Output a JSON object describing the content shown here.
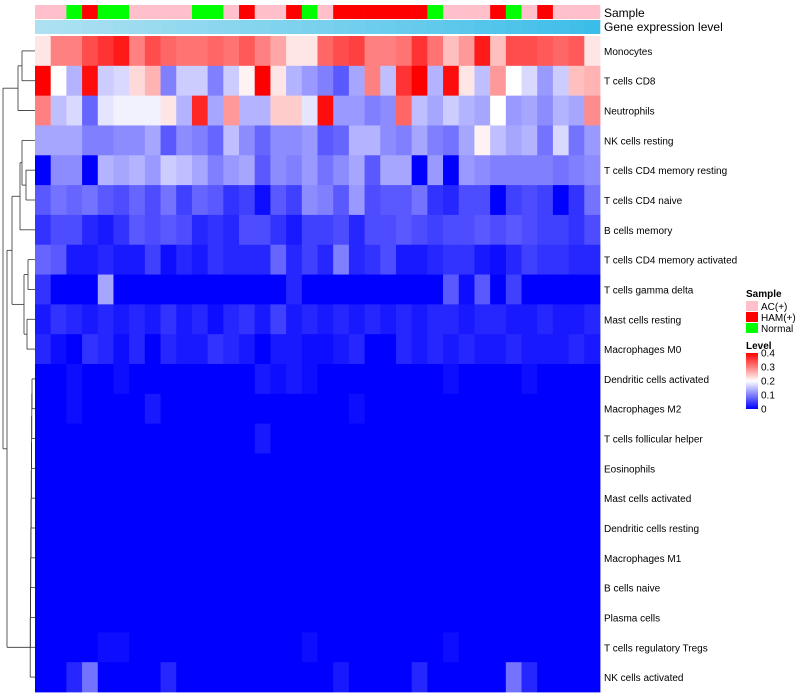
{
  "chart_data": {
    "type": "heatmap",
    "title": "",
    "annotation_tracks": [
      "Sample",
      "Gene expression level"
    ],
    "sample_groups": [
      "AC(+)",
      "AC(+)",
      "Normal",
      "HAM(+)",
      "Normal",
      "Normal",
      "AC(+)",
      "AC(+)",
      "AC(+)",
      "AC(+)",
      "Normal",
      "Normal",
      "AC(+)",
      "HAM(+)",
      "AC(+)",
      "AC(+)",
      "HAM(+)",
      "Normal",
      "AC(+)",
      "HAM(+)",
      "HAM(+)",
      "HAM(+)",
      "HAM(+)",
      "HAM(+)",
      "HAM(+)",
      "Normal",
      "AC(+)",
      "AC(+)",
      "AC(+)",
      "HAM(+)",
      "Normal",
      "AC(+)",
      "HAM(+)",
      "AC(+)",
      "AC(+)",
      "AC(+)"
    ],
    "expression_track": [
      0.06,
      0.08,
      0.1,
      0.12,
      0.15,
      0.18,
      0.2,
      0.22,
      0.25,
      0.28,
      0.3,
      0.33,
      0.35,
      0.38,
      0.4,
      0.43,
      0.45,
      0.48,
      0.5,
      0.53,
      0.56,
      0.58,
      0.6,
      0.63,
      0.66,
      0.69,
      0.72,
      0.75,
      0.78,
      0.81,
      0.84,
      0.87,
      0.9,
      0.93,
      0.96,
      1.0
    ],
    "rows": [
      "Monocytes",
      "T cells CD8",
      "Neutrophils",
      "NK cells resting",
      "T cells CD4 memory resting",
      "T cells CD4 naive",
      "B cells memory",
      "T cells CD4 memory activated",
      "T cells gamma delta",
      "Mast cells resting",
      "Macrophages M0",
      "Dendritic cells activated",
      "Macrophages M2",
      "T cells follicular helper",
      "Eosinophils",
      "Mast cells activated",
      "Dendritic cells resting",
      "Macrophages M1",
      "B cells naive",
      "Plasma cells",
      "T cells regulatory  Tregs",
      "NK cells activated"
    ],
    "values": [
      [
        0.22,
        0.3,
        0.3,
        0.34,
        0.36,
        0.38,
        0.3,
        0.34,
        0.32,
        0.31,
        0.31,
        0.32,
        0.31,
        0.33,
        0.3,
        0.27,
        0.22,
        0.22,
        0.32,
        0.34,
        0.35,
        0.3,
        0.3,
        0.31,
        0.36,
        0.31,
        0.25,
        0.28,
        0.38,
        0.25,
        0.34,
        0.34,
        0.33,
        0.32,
        0.33,
        0.22
      ],
      [
        0.4,
        0.2,
        0.14,
        0.39,
        0.16,
        0.17,
        0.23,
        0.26,
        0.1,
        0.16,
        0.16,
        0.1,
        0.16,
        0.21,
        0.4,
        0.22,
        0.14,
        0.12,
        0.1,
        0.07,
        0.13,
        0.3,
        0.15,
        0.36,
        0.4,
        0.14,
        0.39,
        0.22,
        0.15,
        0.28,
        0.2,
        0.17,
        0.12,
        0.16,
        0.25,
        0.26
      ],
      [
        0.3,
        0.15,
        0.17,
        0.08,
        0.18,
        0.19,
        0.19,
        0.19,
        0.22,
        0.14,
        0.37,
        0.13,
        0.28,
        0.14,
        0.14,
        0.24,
        0.24,
        0.18,
        0.39,
        0.12,
        0.12,
        0.1,
        0.11,
        0.32,
        0.15,
        0.13,
        0.16,
        0.14,
        0.13,
        0.2,
        0.12,
        0.13,
        0.11,
        0.14,
        0.13,
        0.29
      ],
      [
        0.13,
        0.13,
        0.13,
        0.1,
        0.1,
        0.11,
        0.11,
        0.13,
        0.07,
        0.11,
        0.1,
        0.08,
        0.15,
        0.11,
        0.08,
        0.11,
        0.11,
        0.12,
        0.07,
        0.08,
        0.14,
        0.14,
        0.11,
        0.1,
        0.13,
        0.1,
        0.09,
        0.13,
        0.21,
        0.15,
        0.13,
        0.14,
        0.09,
        0.17,
        0.09,
        0.12
      ],
      [
        0.0,
        0.11,
        0.11,
        0.0,
        0.14,
        0.13,
        0.14,
        0.12,
        0.16,
        0.15,
        0.13,
        0.1,
        0.12,
        0.13,
        0.07,
        0.11,
        0.1,
        0.12,
        0.09,
        0.11,
        0.13,
        0.07,
        0.13,
        0.13,
        0.0,
        0.12,
        0.0,
        0.12,
        0.11,
        0.1,
        0.1,
        0.1,
        0.1,
        0.09,
        0.1,
        0.11
      ],
      [
        0.07,
        0.09,
        0.08,
        0.09,
        0.07,
        0.06,
        0.08,
        0.06,
        0.09,
        0.05,
        0.08,
        0.07,
        0.04,
        0.05,
        0.01,
        0.07,
        0.05,
        0.11,
        0.1,
        0.07,
        0.12,
        0.06,
        0.07,
        0.07,
        0.09,
        0.04,
        0.03,
        0.06,
        0.06,
        0.0,
        0.05,
        0.06,
        0.05,
        0.0,
        0.04,
        0.09
      ],
      [
        0.04,
        0.06,
        0.06,
        0.03,
        0.02,
        0.04,
        0.07,
        0.06,
        0.07,
        0.06,
        0.03,
        0.04,
        0.03,
        0.06,
        0.06,
        0.04,
        0.02,
        0.05,
        0.05,
        0.06,
        0.03,
        0.06,
        0.06,
        0.07,
        0.06,
        0.05,
        0.06,
        0.06,
        0.07,
        0.06,
        0.07,
        0.06,
        0.05,
        0.05,
        0.04,
        0.06
      ],
      [
        0.08,
        0.07,
        0.02,
        0.02,
        0.03,
        0.02,
        0.02,
        0.05,
        0.01,
        0.03,
        0.02,
        0.04,
        0.03,
        0.03,
        0.03,
        0.08,
        0.03,
        0.05,
        0.03,
        0.1,
        0.03,
        0.04,
        0.06,
        0.02,
        0.02,
        0.03,
        0.04,
        0.04,
        0.02,
        0.01,
        0.03,
        0.05,
        0.04,
        0.04,
        0.03,
        0.03
      ],
      [
        0.04,
        0.0,
        0.0,
        0.0,
        0.13,
        0.0,
        0.0,
        0.0,
        0.0,
        0.0,
        0.0,
        0.0,
        0.0,
        0.0,
        0.0,
        0.0,
        0.03,
        0.0,
        0.0,
        0.0,
        0.0,
        0.0,
        0.0,
        0.0,
        0.0,
        0.0,
        0.07,
        0.01,
        0.07,
        0.0,
        0.05,
        0.0,
        0.0,
        0.0,
        0.0,
        0.0
      ],
      [
        0.02,
        0.04,
        0.03,
        0.02,
        0.03,
        0.02,
        0.03,
        0.02,
        0.04,
        0.02,
        0.03,
        0.01,
        0.03,
        0.04,
        0.02,
        0.05,
        0.02,
        0.03,
        0.02,
        0.03,
        0.02,
        0.03,
        0.02,
        0.03,
        0.02,
        0.03,
        0.03,
        0.02,
        0.03,
        0.03,
        0.02,
        0.02,
        0.03,
        0.02,
        0.02,
        0.03
      ],
      [
        0.03,
        0.01,
        0.0,
        0.04,
        0.03,
        0.01,
        0.03,
        0.0,
        0.03,
        0.02,
        0.02,
        0.04,
        0.03,
        0.02,
        0.0,
        0.02,
        0.02,
        0.01,
        0.01,
        0.02,
        0.03,
        0.0,
        0.0,
        0.03,
        0.02,
        0.03,
        0.02,
        0.03,
        0.02,
        0.02,
        0.03,
        0.02,
        0.02,
        0.02,
        0.03,
        0.02
      ],
      [
        0.0,
        0.0,
        0.01,
        0.0,
        0.0,
        0.01,
        0.0,
        0.0,
        0.0,
        0.0,
        0.0,
        0.0,
        0.0,
        0.0,
        0.02,
        0.01,
        0.02,
        0.01,
        0.0,
        0.0,
        0.0,
        0.0,
        0.0,
        0.0,
        0.0,
        0.0,
        0.01,
        0.0,
        0.0,
        0.0,
        0.0,
        0.01,
        0.0,
        0.0,
        0.0,
        0.0
      ],
      [
        0.0,
        0.0,
        0.01,
        0.0,
        0.0,
        0.0,
        0.0,
        0.02,
        0.0,
        0.0,
        0.0,
        0.0,
        0.0,
        0.0,
        0.0,
        0.0,
        0.0,
        0.0,
        0.0,
        0.0,
        0.01,
        0.0,
        0.0,
        0.0,
        0.0,
        0.0,
        0.0,
        0.0,
        0.0,
        0.0,
        0.0,
        0.0,
        0.0,
        0.0,
        0.0,
        0.0
      ],
      [
        0.0,
        0.0,
        0.0,
        0.0,
        0.0,
        0.0,
        0.0,
        0.0,
        0.0,
        0.0,
        0.0,
        0.0,
        0.0,
        0.0,
        0.02,
        0.0,
        0.0,
        0.0,
        0.0,
        0.0,
        0.0,
        0.0,
        0.0,
        0.0,
        0.0,
        0.0,
        0.0,
        0.0,
        0.0,
        0.0,
        0.0,
        0.0,
        0.0,
        0.0,
        0.0,
        0.0
      ],
      [
        0.0,
        0.0,
        0.0,
        0.0,
        0.0,
        0.0,
        0.0,
        0.0,
        0.0,
        0.0,
        0.0,
        0.0,
        0.0,
        0.0,
        0.0,
        0.0,
        0.0,
        0.0,
        0.0,
        0.0,
        0.0,
        0.0,
        0.0,
        0.0,
        0.0,
        0.0,
        0.0,
        0.0,
        0.0,
        0.0,
        0.0,
        0.0,
        0.0,
        0.0,
        0.0,
        0.0
      ],
      [
        0.0,
        0.0,
        0.0,
        0.0,
        0.0,
        0.0,
        0.0,
        0.0,
        0.0,
        0.0,
        0.0,
        0.0,
        0.0,
        0.0,
        0.0,
        0.0,
        0.0,
        0.0,
        0.0,
        0.0,
        0.0,
        0.0,
        0.0,
        0.0,
        0.0,
        0.0,
        0.0,
        0.0,
        0.0,
        0.0,
        0.0,
        0.0,
        0.0,
        0.0,
        0.0,
        0.0
      ],
      [
        0.0,
        0.0,
        0.0,
        0.0,
        0.0,
        0.0,
        0.0,
        0.0,
        0.0,
        0.0,
        0.0,
        0.0,
        0.0,
        0.0,
        0.0,
        0.0,
        0.0,
        0.0,
        0.0,
        0.0,
        0.0,
        0.0,
        0.0,
        0.0,
        0.0,
        0.0,
        0.0,
        0.0,
        0.0,
        0.0,
        0.0,
        0.0,
        0.0,
        0.0,
        0.0,
        0.0
      ],
      [
        0.0,
        0.0,
        0.0,
        0.0,
        0.0,
        0.0,
        0.0,
        0.0,
        0.0,
        0.0,
        0.0,
        0.0,
        0.0,
        0.0,
        0.0,
        0.0,
        0.0,
        0.0,
        0.0,
        0.0,
        0.0,
        0.0,
        0.0,
        0.0,
        0.0,
        0.0,
        0.0,
        0.0,
        0.0,
        0.0,
        0.0,
        0.0,
        0.0,
        0.0,
        0.0,
        0.0
      ],
      [
        0.0,
        0.0,
        0.0,
        0.0,
        0.0,
        0.0,
        0.0,
        0.0,
        0.0,
        0.0,
        0.0,
        0.0,
        0.0,
        0.0,
        0.0,
        0.0,
        0.0,
        0.0,
        0.0,
        0.0,
        0.0,
        0.0,
        0.0,
        0.0,
        0.0,
        0.0,
        0.0,
        0.0,
        0.0,
        0.0,
        0.0,
        0.0,
        0.0,
        0.0,
        0.0,
        0.0
      ],
      [
        0.0,
        0.0,
        0.0,
        0.0,
        0.0,
        0.0,
        0.0,
        0.0,
        0.0,
        0.0,
        0.0,
        0.0,
        0.0,
        0.0,
        0.0,
        0.0,
        0.0,
        0.0,
        0.0,
        0.0,
        0.0,
        0.0,
        0.0,
        0.0,
        0.0,
        0.0,
        0.0,
        0.0,
        0.0,
        0.0,
        0.0,
        0.0,
        0.0,
        0.0,
        0.0,
        0.0
      ],
      [
        0.0,
        0.0,
        0.0,
        0.0,
        0.01,
        0.01,
        0.0,
        0.0,
        0.0,
        0.0,
        0.0,
        0.0,
        0.0,
        0.0,
        0.0,
        0.0,
        0.0,
        0.01,
        0.0,
        0.0,
        0.0,
        0.0,
        0.0,
        0.0,
        0.0,
        0.0,
        0.01,
        0.0,
        0.0,
        0.0,
        0.0,
        0.0,
        0.0,
        0.0,
        0.0,
        0.0
      ],
      [
        0.0,
        0.0,
        0.03,
        0.09,
        0.0,
        0.0,
        0.0,
        0.0,
        0.03,
        0.0,
        0.0,
        0.0,
        0.0,
        0.0,
        0.0,
        0.0,
        0.0,
        0.0,
        0.0,
        0.02,
        0.0,
        0.0,
        0.0,
        0.0,
        0.03,
        0.0,
        0.0,
        0.0,
        0.0,
        0.0,
        0.09,
        0.03,
        0.0,
        0.0,
        0.0,
        0.0
      ]
    ],
    "color_scale": {
      "min": 0,
      "max": 0.4,
      "low": "#0000ff",
      "mid": "#ffffff",
      "high": "#ff0000",
      "mid_value": 0.2
    },
    "legend": {
      "sample_title": "Sample",
      "sample_entries": [
        {
          "label": "AC(+)",
          "color": "#ffc0cb"
        },
        {
          "label": "HAM(+)",
          "color": "#ff0000"
        },
        {
          "label": "Normal",
          "color": "#00ff00"
        }
      ],
      "level_title": "Level",
      "level_ticks": [
        "0.4",
        "0.3",
        "0.2",
        "0.1",
        "0"
      ],
      "level_tick_values": [
        0.4,
        0.3,
        0.2,
        0.1,
        0
      ]
    },
    "expression_track_colors": {
      "low": "#b4e3f2",
      "high": "#3cbde9"
    },
    "dendrogram": "rows-left"
  }
}
